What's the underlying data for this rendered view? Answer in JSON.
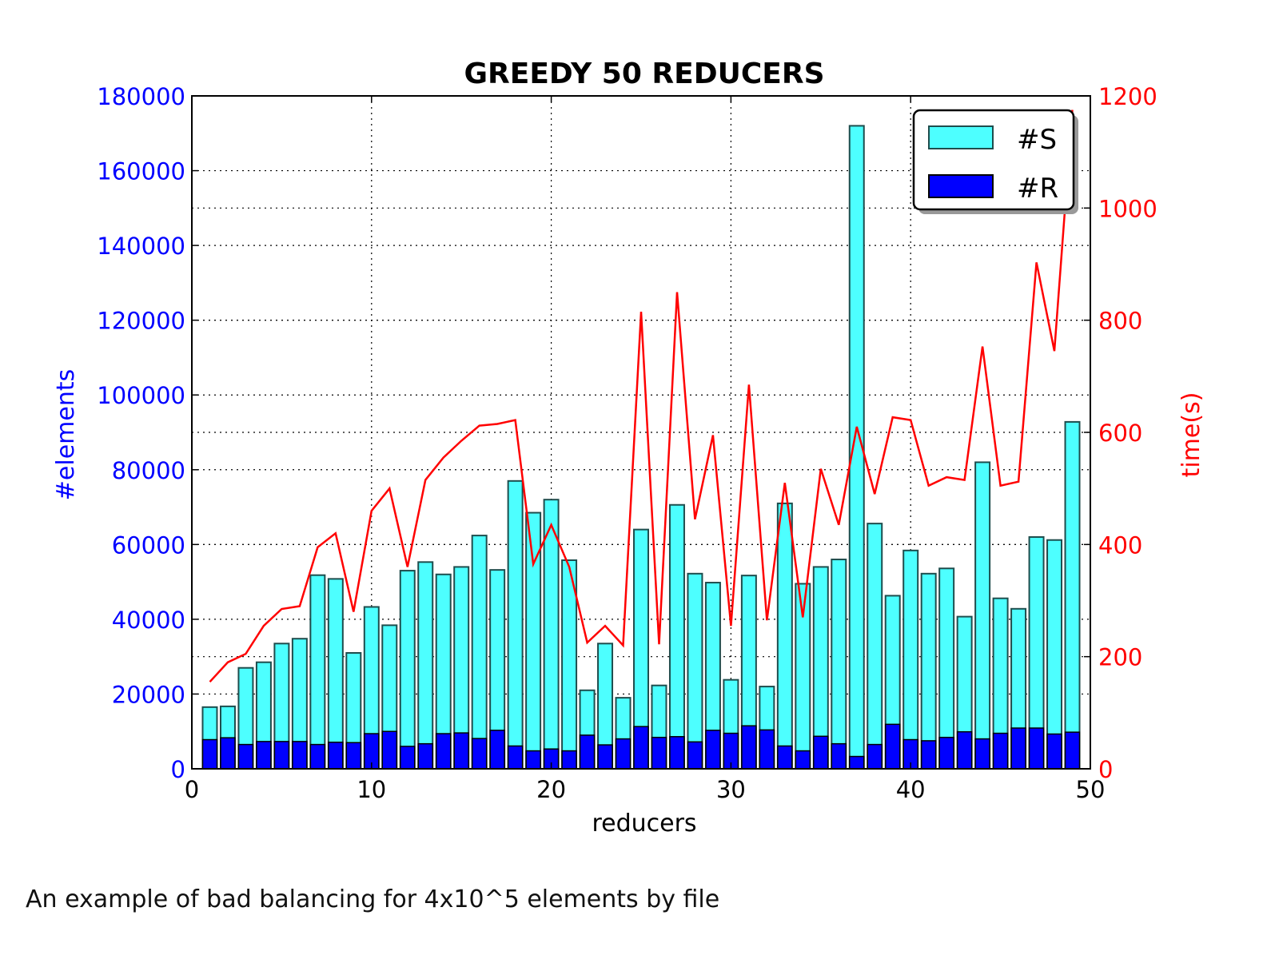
{
  "caption": "An example of bad balancing for 4x10^5 elements by file",
  "chart_data": {
    "type": "bar",
    "title": "GREEDY 50 REDUCERS",
    "xlabel": "reducers",
    "ylabel_left": "#elements",
    "ylabel_right": "time(s)",
    "xlim": [
      0,
      50
    ],
    "ylim_left": [
      0,
      180000
    ],
    "ylim_right": [
      0,
      1200
    ],
    "x_ticks": [
      0,
      10,
      20,
      30,
      40,
      50
    ],
    "y_left_ticks": [
      0,
      20000,
      40000,
      60000,
      80000,
      100000,
      120000,
      140000,
      160000,
      180000
    ],
    "y_right_ticks": [
      0,
      200,
      400,
      600,
      800,
      1000,
      1200
    ],
    "grid": true,
    "legend_position": "top-right",
    "colors": {
      "S": "#4dffff",
      "R": "#0000ff",
      "time": "#ff0000",
      "left_axis": "#0000ff",
      "right_axis": "#ff0000"
    },
    "x": [
      1,
      2,
      3,
      4,
      5,
      6,
      7,
      8,
      9,
      10,
      11,
      12,
      13,
      14,
      15,
      16,
      17,
      18,
      19,
      20,
      21,
      22,
      23,
      24,
      25,
      26,
      27,
      28,
      29,
      30,
      31,
      32,
      33,
      34,
      35,
      36,
      37,
      38,
      39,
      40,
      41,
      42,
      43,
      44,
      45,
      46,
      47,
      48,
      49,
      50
    ],
    "series": [
      {
        "name": "#S",
        "kind": "bar",
        "axis": "left",
        "values": [
          16500,
          16700,
          27000,
          28500,
          33500,
          34800,
          51800,
          50800,
          31000,
          43300,
          38400,
          53000,
          55300,
          52000,
          54000,
          62400,
          53200,
          77000,
          68500,
          72000,
          55800,
          21000,
          33500,
          19000,
          64000,
          22300,
          70600,
          52200,
          49800,
          23800,
          51700,
          22000,
          71000,
          49500,
          54000,
          56000,
          172000,
          65600,
          46300,
          58400,
          52200,
          53600,
          40700,
          82000,
          45600,
          42800,
          62000,
          61200,
          92800,
          null
        ]
      },
      {
        "name": "#R",
        "kind": "bar",
        "axis": "left",
        "values": [
          7800,
          8300,
          6500,
          7300,
          7300,
          7300,
          6500,
          7100,
          7000,
          9400,
          10000,
          6000,
          6700,
          9400,
          9600,
          8100,
          10300,
          6100,
          4800,
          5300,
          4800,
          9000,
          6400,
          8000,
          11300,
          8400,
          8600,
          7200,
          10300,
          9500,
          11500,
          10400,
          6100,
          4800,
          8700,
          6700,
          3300,
          6500,
          11900,
          7800,
          7500,
          8400,
          9900,
          8000,
          9500,
          10900,
          10900,
          9300,
          9800,
          null
        ]
      },
      {
        "kind": "line",
        "axis": "right",
        "values": [
          155,
          190,
          205,
          255,
          285,
          290,
          395,
          420,
          280,
          460,
          500,
          360,
          515,
          555,
          585,
          612,
          615,
          622,
          365,
          435,
          360,
          225,
          255,
          220,
          815,
          222,
          850,
          445,
          595,
          255,
          685,
          265,
          510,
          270,
          535,
          435,
          610,
          490,
          627,
          622,
          505,
          520,
          515,
          753,
          505,
          512,
          903,
          745,
          1175,
          null
        ]
      }
    ]
  }
}
